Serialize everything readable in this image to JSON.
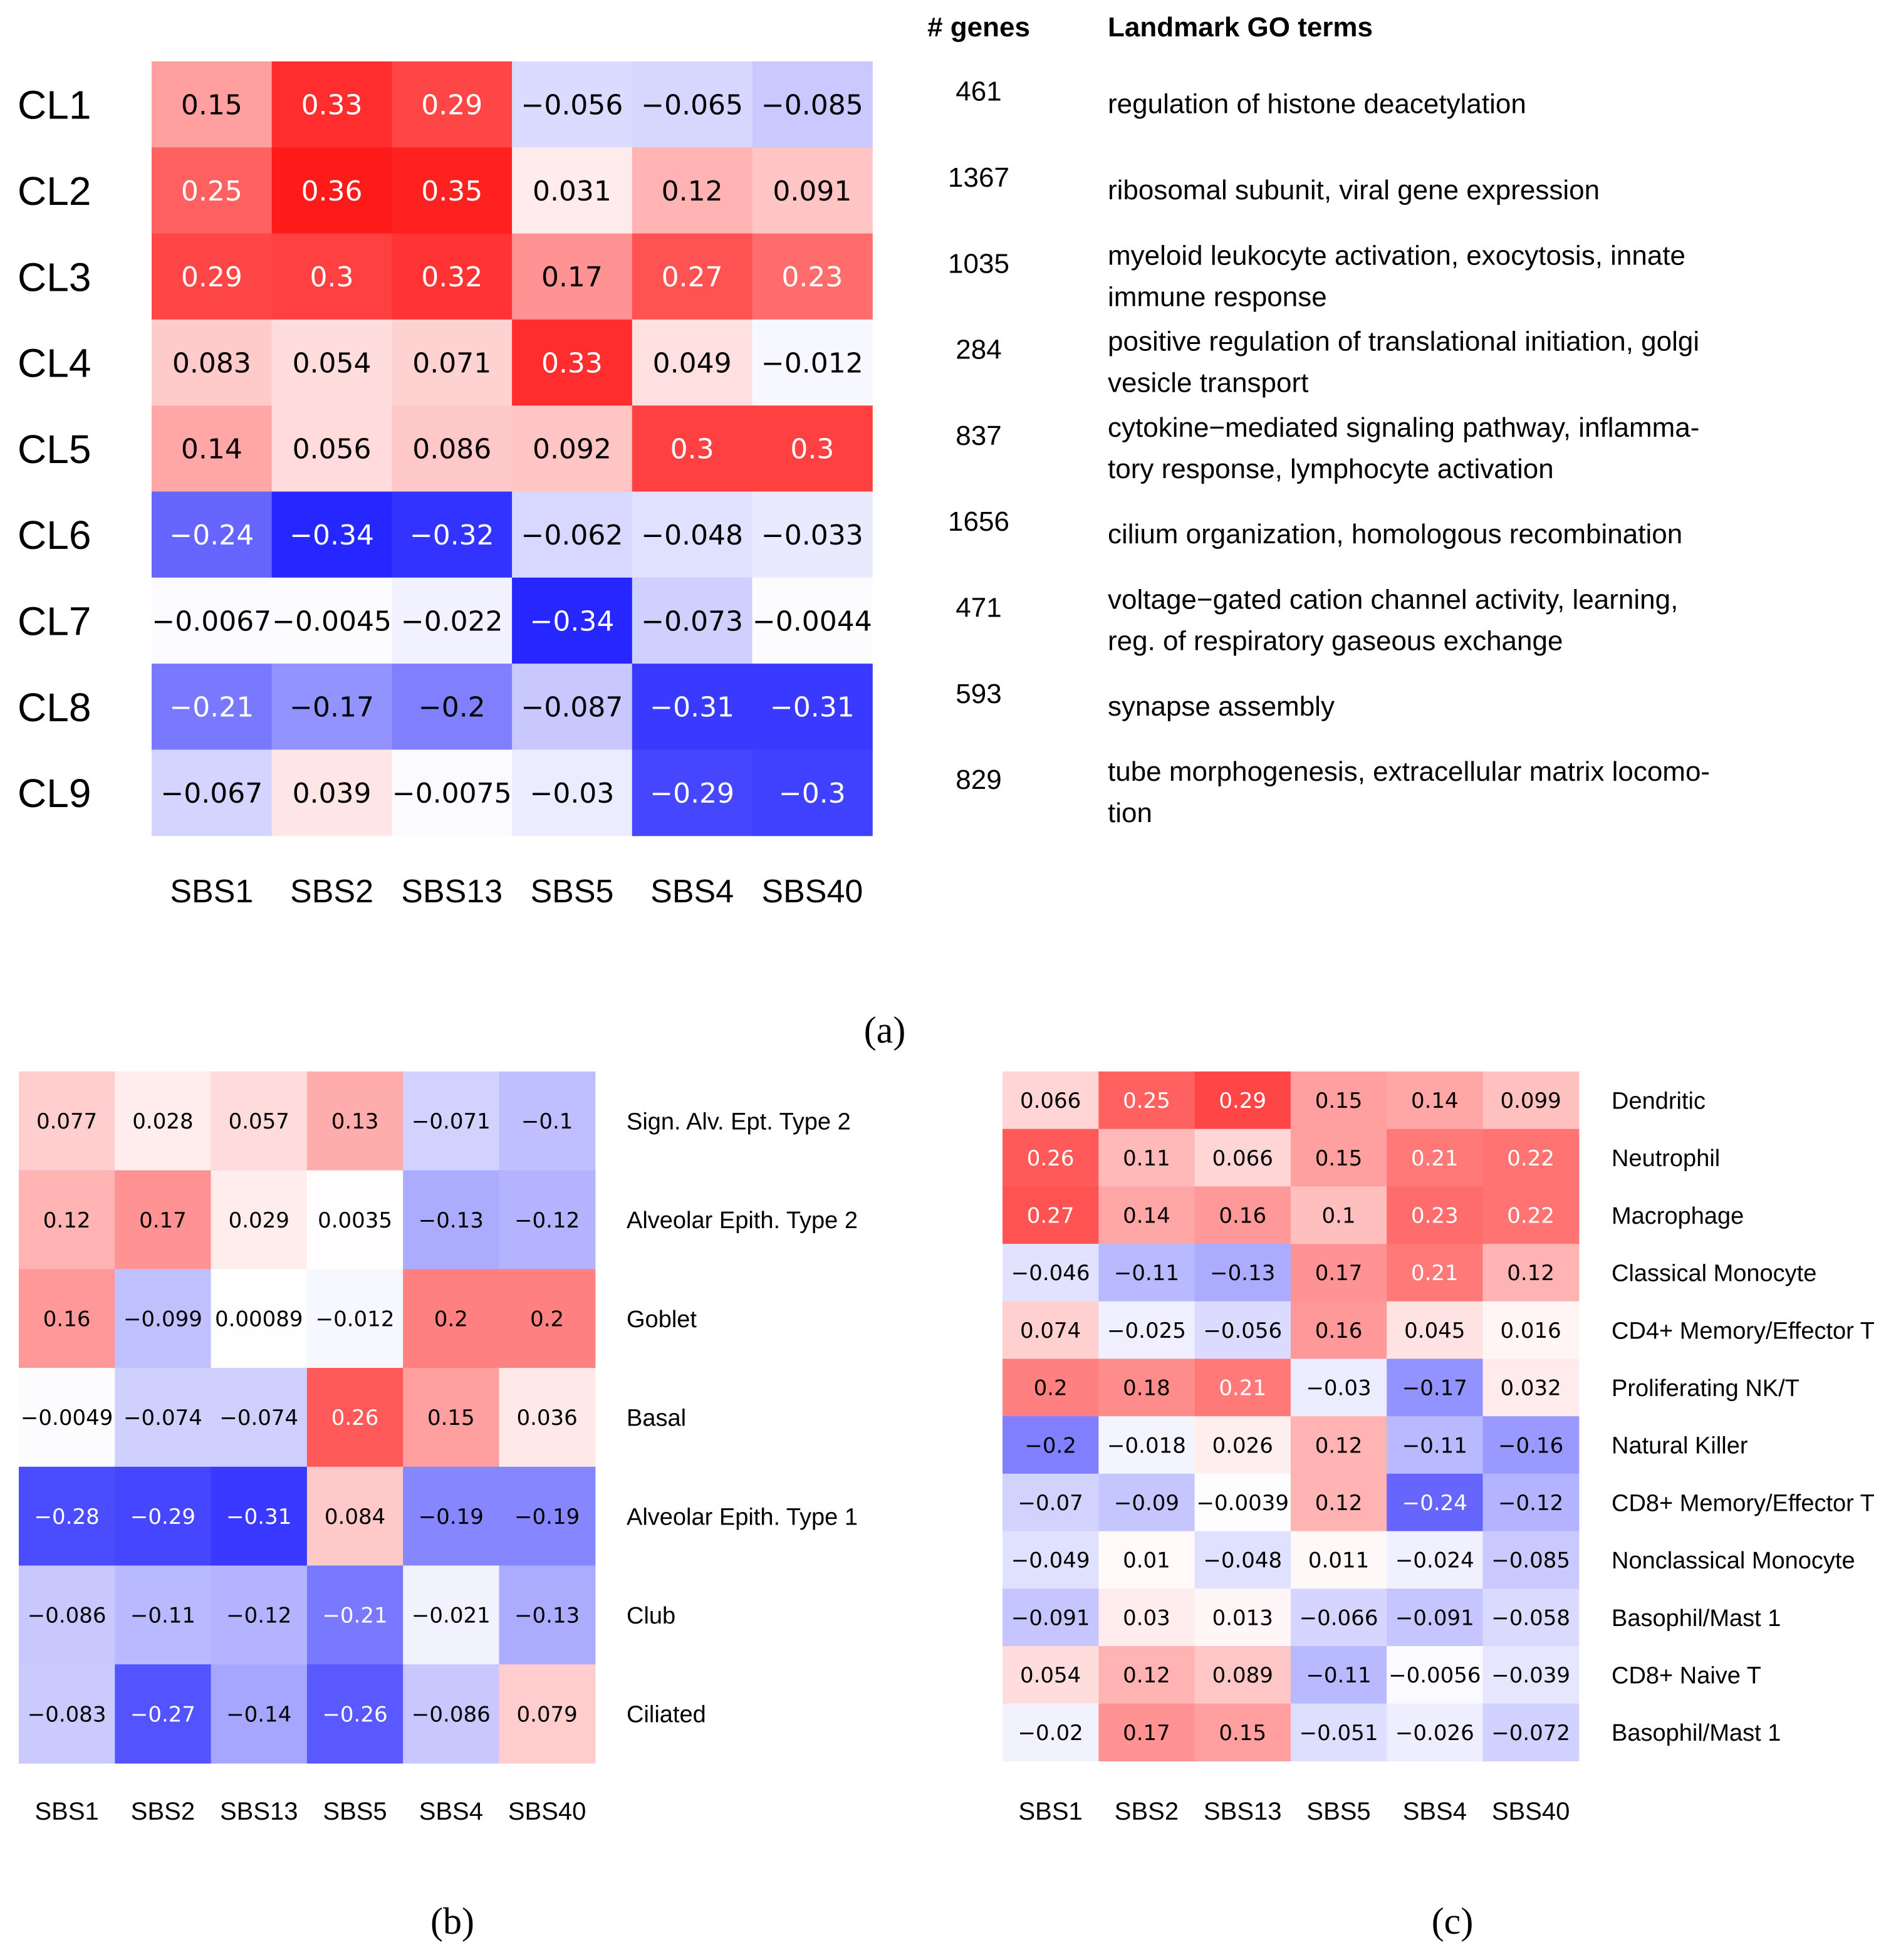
{
  "colors": {
    "positive": "#ff0000",
    "negative": "#0000ff",
    "neutral": "#ffffff",
    "text_dark": "#000000",
    "text_light": "#ffffff"
  },
  "panel_a_caption": "(a)",
  "panel_b_caption": "(b)",
  "panel_c_caption": "(c)",
  "panel_a_genes_header": "# genes",
  "panel_a_go_header": "Landmark GO terms",
  "panel_a_gene_counts": [
    "461",
    "1367",
    "1035",
    "284",
    "837",
    "1656",
    "471",
    "593",
    "829"
  ],
  "panel_a_go_terms": [
    [
      "regulation of histone deacetylation"
    ],
    [
      "ribosomal subunit, viral gene expression"
    ],
    [
      "myeloid leukocyte activation, exocytosis, innate",
      "immune response"
    ],
    [
      "positive regulation of translational initiation, golgi",
      "vesicle transport"
    ],
    [
      "cytokine−mediated signaling pathway, inflamma-",
      "tory response, lymphocyte activation"
    ],
    [
      "cilium organization, homologous recombination"
    ],
    [
      "voltage−gated cation channel activity, learning,",
      "reg. of respiratory gaseous exchange"
    ],
    [
      "synapse assembly"
    ],
    [
      "tube morphogenesis, extracellular matrix locomo-",
      "tion"
    ]
  ],
  "chart_data": [
    {
      "type": "heatmap",
      "panel": "a",
      "columns": [
        "SBS1",
        "SBS2",
        "SBS13",
        "SBS5",
        "SBS4",
        "SBS40"
      ],
      "rows": [
        "CL1",
        "CL2",
        "CL3",
        "CL4",
        "CL5",
        "CL6",
        "CL7",
        "CL8",
        "CL9"
      ],
      "values": [
        [
          0.15,
          0.33,
          0.29,
          -0.056,
          -0.065,
          -0.085
        ],
        [
          0.25,
          0.36,
          0.35,
          0.031,
          0.12,
          0.091
        ],
        [
          0.29,
          0.3,
          0.32,
          0.17,
          0.27,
          0.23
        ],
        [
          0.083,
          0.054,
          0.071,
          0.33,
          0.049,
          -0.012
        ],
        [
          0.14,
          0.056,
          0.086,
          0.092,
          0.3,
          0.3
        ],
        [
          -0.24,
          -0.34,
          -0.32,
          -0.062,
          -0.048,
          -0.033
        ],
        [
          -0.0067,
          -0.0045,
          -0.022,
          -0.34,
          -0.073,
          -0.0044
        ],
        [
          -0.21,
          -0.17,
          -0.2,
          -0.087,
          -0.31,
          -0.31
        ],
        [
          -0.067,
          0.039,
          -0.0075,
          -0.03,
          -0.29,
          -0.3
        ]
      ],
      "labels": [
        [
          "0.15",
          "0.33",
          "0.29",
          "−0.056",
          "−0.065",
          "−0.085"
        ],
        [
          "0.25",
          "0.36",
          "0.35",
          "0.031",
          "0.12",
          "0.091"
        ],
        [
          "0.29",
          "0.3",
          "0.32",
          "0.17",
          "0.27",
          "0.23"
        ],
        [
          "0.083",
          "0.054",
          "0.071",
          "0.33",
          "0.049",
          "−0.012"
        ],
        [
          "0.14",
          "0.056",
          "0.086",
          "0.092",
          "0.3",
          "0.3"
        ],
        [
          "−0.24",
          "−0.34",
          "−0.32",
          "−0.062",
          "−0.048",
          "−0.033"
        ],
        [
          "−0.0067",
          "−0.0045",
          "−0.022",
          "−0.34",
          "−0.073",
          "−0.0044"
        ],
        [
          "−0.21",
          "−0.17",
          "−0.2",
          "−0.087",
          "−0.31",
          "−0.31"
        ],
        [
          "−0.067",
          "0.039",
          "−0.0075",
          "−0.03",
          "−0.29",
          "−0.3"
        ]
      ]
    },
    {
      "type": "heatmap",
      "panel": "b",
      "columns": [
        "SBS1",
        "SBS2",
        "SBS13",
        "SBS5",
        "SBS4",
        "SBS40"
      ],
      "rows": [
        "Sign. Alv. Ept. Type 2",
        "Alveolar Epith. Type 2",
        "Goblet",
        "Basal",
        "Alveolar Epith. Type 1",
        "Club",
        "Ciliated"
      ],
      "values": [
        [
          0.077,
          0.028,
          0.057,
          0.13,
          -0.071,
          -0.1
        ],
        [
          0.12,
          0.17,
          0.029,
          0.0035,
          -0.13,
          -0.12
        ],
        [
          0.16,
          -0.099,
          0.00089,
          -0.012,
          0.2,
          0.2
        ],
        [
          -0.0049,
          -0.074,
          -0.074,
          0.26,
          0.15,
          0.036
        ],
        [
          -0.28,
          -0.29,
          -0.31,
          0.084,
          -0.19,
          -0.19
        ],
        [
          -0.086,
          -0.11,
          -0.12,
          -0.21,
          -0.021,
          -0.13
        ],
        [
          -0.083,
          -0.27,
          -0.14,
          -0.26,
          -0.086,
          0.079
        ]
      ],
      "labels": [
        [
          "0.077",
          "0.028",
          "0.057",
          "0.13",
          "−0.071",
          "−0.1"
        ],
        [
          "0.12",
          "0.17",
          "0.029",
          "0.0035",
          "−0.13",
          "−0.12"
        ],
        [
          "0.16",
          "−0.099",
          "0.00089",
          "−0.012",
          "0.2",
          "0.2"
        ],
        [
          "−0.0049",
          "−0.074",
          "−0.074",
          "0.26",
          "0.15",
          "0.036"
        ],
        [
          "−0.28",
          "−0.29",
          "−0.31",
          "0.084",
          "−0.19",
          "−0.19"
        ],
        [
          "−0.086",
          "−0.11",
          "−0.12",
          "−0.21",
          "−0.021",
          "−0.13"
        ],
        [
          "−0.083",
          "−0.27",
          "−0.14",
          "−0.26",
          "−0.086",
          "0.079"
        ]
      ]
    },
    {
      "type": "heatmap",
      "panel": "c",
      "columns": [
        "SBS1",
        "SBS2",
        "SBS13",
        "SBS5",
        "SBS4",
        "SBS40"
      ],
      "rows": [
        "Dendritic",
        "Neutrophil",
        "Macrophage",
        "Classical Monocyte",
        "CD4+ Memory/Effector T",
        "Proliferating NK/T",
        "Natural Killer",
        "CD8+ Memory/Effector T",
        "Nonclassical Monocyte",
        "Basophil/Mast 1",
        "CD8+ Naive T",
        "Basophil/Mast 1"
      ],
      "values": [
        [
          0.066,
          0.25,
          0.29,
          0.15,
          0.14,
          0.099
        ],
        [
          0.26,
          0.11,
          0.066,
          0.15,
          0.21,
          0.22
        ],
        [
          0.27,
          0.14,
          0.16,
          0.1,
          0.23,
          0.22
        ],
        [
          -0.046,
          -0.11,
          -0.13,
          0.17,
          0.21,
          0.12
        ],
        [
          0.074,
          -0.025,
          -0.056,
          0.16,
          0.045,
          0.016
        ],
        [
          0.2,
          0.18,
          0.21,
          -0.03,
          -0.17,
          0.032
        ],
        [
          -0.2,
          -0.018,
          0.026,
          0.12,
          -0.11,
          -0.16
        ],
        [
          -0.07,
          -0.09,
          -0.0039,
          0.12,
          -0.24,
          -0.12
        ],
        [
          -0.049,
          0.01,
          -0.048,
          0.011,
          -0.024,
          -0.085
        ],
        [
          -0.091,
          0.03,
          0.013,
          -0.066,
          -0.091,
          -0.058
        ],
        [
          0.054,
          0.12,
          0.089,
          -0.11,
          -0.0056,
          -0.039
        ],
        [
          -0.02,
          0.17,
          0.15,
          -0.051,
          -0.026,
          -0.072
        ]
      ],
      "labels": [
        [
          "0.066",
          "0.25",
          "0.29",
          "0.15",
          "0.14",
          "0.099"
        ],
        [
          "0.26",
          "0.11",
          "0.066",
          "0.15",
          "0.21",
          "0.22"
        ],
        [
          "0.27",
          "0.14",
          "0.16",
          "0.1",
          "0.23",
          "0.22"
        ],
        [
          "−0.046",
          "−0.11",
          "−0.13",
          "0.17",
          "0.21",
          "0.12"
        ],
        [
          "0.074",
          "−0.025",
          "−0.056",
          "0.16",
          "0.045",
          "0.016"
        ],
        [
          "0.2",
          "0.18",
          "0.21",
          "−0.03",
          "−0.17",
          "0.032"
        ],
        [
          "−0.2",
          "−0.018",
          "0.026",
          "0.12",
          "−0.11",
          "−0.16"
        ],
        [
          "−0.07",
          "−0.09",
          "−0.0039",
          "0.12",
          "−0.24",
          "−0.12"
        ],
        [
          "−0.049",
          "0.01",
          "−0.048",
          "0.011",
          "−0.024",
          "−0.085"
        ],
        [
          "−0.091",
          "0.03",
          "0.013",
          "−0.066",
          "−0.091",
          "−0.058"
        ],
        [
          "0.054",
          "0.12",
          "0.089",
          "−0.11",
          "−0.0056",
          "−0.039"
        ],
        [
          "−0.02",
          "0.17",
          "0.15",
          "−0.051",
          "−0.026",
          "−0.072"
        ]
      ]
    }
  ]
}
